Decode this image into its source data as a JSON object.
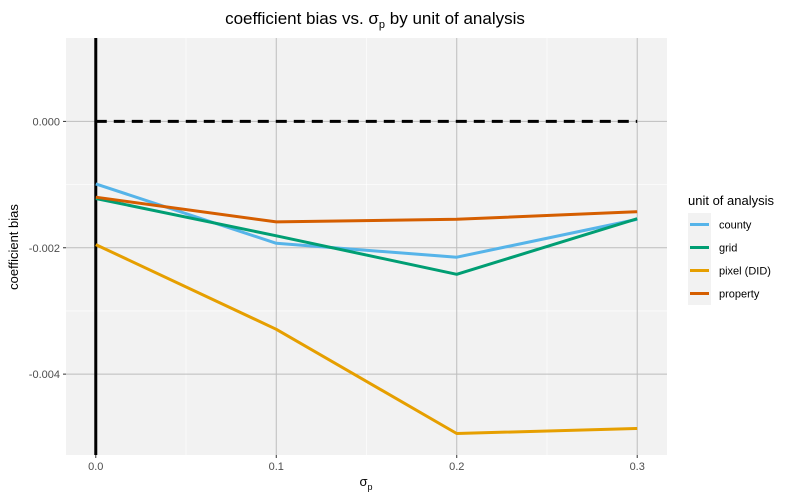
{
  "chart_data": {
    "type": "line",
    "title_main": "coefficient bias vs. ",
    "title_sigma": "σ",
    "title_sub": "p",
    "title_rest": " by unit of analysis",
    "xlabel_sigma": "σ",
    "xlabel_sub": "p",
    "ylabel": "coefficient bias",
    "x": [
      0,
      0.1,
      0.2,
      0.3
    ],
    "x_ticks": [
      "0.0",
      "0.1",
      "0.2",
      "0.3"
    ],
    "y_ticks": [
      {
        "value": 0,
        "label": "0.000"
      },
      {
        "value": -0.002,
        "label": "-0.002"
      },
      {
        "value": -0.004,
        "label": "-0.004"
      }
    ],
    "xlim": [
      -0.0165,
      0.3165
    ],
    "ylim": [
      -0.00528,
      0.00132
    ],
    "grid": true,
    "legend_title": "unit of analysis",
    "legend_position": "right",
    "reference_line": {
      "y": 0,
      "style": "dashed",
      "color": "#000000"
    },
    "vertical_line": {
      "x": 0,
      "color": "#000000"
    },
    "series": [
      {
        "name": "county",
        "color": "#56B4E9",
        "values": [
          -0.00099,
          -0.00193,
          -0.00215,
          -0.00155
        ]
      },
      {
        "name": "grid",
        "color": "#009E73",
        "values": [
          -0.00122,
          -0.00181,
          -0.00242,
          -0.00154
        ]
      },
      {
        "name": "pixel (DID)",
        "color": "#E69F00",
        "values": [
          -0.00195,
          -0.00329,
          -0.00494,
          -0.00486
        ]
      },
      {
        "name": "property",
        "color": "#D55E00",
        "values": [
          -0.0012,
          -0.00159,
          -0.00155,
          -0.00143
        ]
      }
    ]
  }
}
